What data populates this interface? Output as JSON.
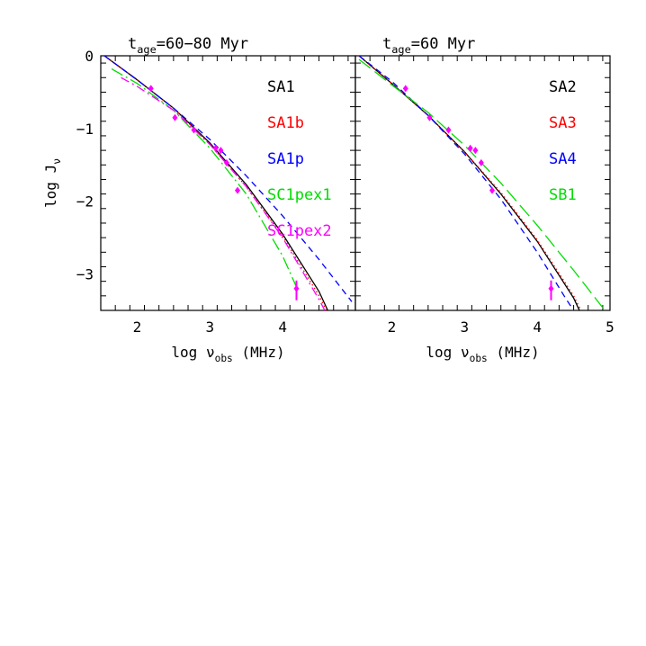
{
  "chart_data": [
    {
      "type": "line",
      "title": "t_age=60-80 Myr",
      "title_main": "t",
      "title_sub": "age",
      "title_rest": "=60−80 Myr",
      "xlabel_prefix": "log ",
      "xlabel_symbol": "ν",
      "xlabel_sub": "obs",
      "xlabel_unit": " (MHz)",
      "ylabel_prefix": "log J",
      "ylabel_sub": "ν",
      "xlim": [
        1.5,
        5.0
      ],
      "ylim": [
        -3.5,
        0.0
      ],
      "xticks": [
        2,
        3,
        4
      ],
      "xtick_labels": [
        "2",
        "3",
        "4"
      ],
      "yticks": [
        0,
        -1,
        -2,
        -3
      ],
      "ytick_labels": [
        "0",
        "−1",
        "−2",
        "−3"
      ],
      "legend_position": "top-right",
      "series": [
        {
          "name": "SA1",
          "color": "#000000",
          "dash": "solid",
          "x": [
            1.55,
            2.0,
            2.5,
            3.0,
            3.5,
            4.0,
            4.5,
            4.62
          ],
          "y": [
            0.0,
            -0.33,
            -0.72,
            -1.2,
            -1.77,
            -2.45,
            -3.24,
            -3.5
          ]
        },
        {
          "name": "SA1b",
          "color": "#ff0000",
          "dash": "dotted",
          "x": [
            1.55,
            2.0,
            2.5,
            3.0,
            3.5,
            4.0,
            4.5,
            4.6
          ],
          "y": [
            0.0,
            -0.33,
            -0.72,
            -1.22,
            -1.8,
            -2.48,
            -3.3,
            -3.5
          ]
        },
        {
          "name": "SA1p",
          "color": "#0000ff",
          "dash": "short-dash",
          "x": [
            1.55,
            2.0,
            2.5,
            3.0,
            3.5,
            4.0,
            4.5,
            4.95
          ],
          "y": [
            0.0,
            -0.33,
            -0.72,
            -1.15,
            -1.65,
            -2.2,
            -2.8,
            -3.38
          ]
        },
        {
          "name": "SC1pex1",
          "color": "#00dd00",
          "dash": "long-dash-dot",
          "x": [
            1.65,
            2.0,
            2.5,
            3.0,
            3.5,
            4.0,
            4.2
          ],
          "y": [
            -0.18,
            -0.38,
            -0.75,
            -1.27,
            -1.9,
            -2.75,
            -3.2
          ]
        },
        {
          "name": "SC1pex2",
          "color": "#ff00ff",
          "dash": "dash-dot",
          "x": [
            1.78,
            2.0,
            2.5,
            3.0,
            3.5,
            4.0,
            4.5,
            4.58
          ],
          "y": [
            -0.3,
            -0.42,
            -0.75,
            -1.22,
            -1.8,
            -2.5,
            -3.35,
            -3.5
          ]
        }
      ],
      "observations": {
        "color": "#ff00ff",
        "x": [
          2.19,
          2.52,
          2.78,
          3.08,
          3.15,
          3.23,
          3.38
        ],
        "y": [
          -0.45,
          -0.85,
          -1.02,
          -1.27,
          -1.3,
          -1.47,
          -1.85
        ],
        "upper_limit": {
          "x": 4.19,
          "y": -3.2
        }
      }
    },
    {
      "type": "line",
      "title": "t_age=60 Myr",
      "title_main": "t",
      "title_sub": "age",
      "title_rest": "=60 Myr",
      "xlabel_prefix": "log ",
      "xlabel_symbol": "ν",
      "xlabel_sub": "obs",
      "xlabel_unit": " (MHz)",
      "xlim": [
        1.5,
        5.0
      ],
      "ylim": [
        -3.5,
        0.0
      ],
      "xticks": [
        2,
        3,
        4,
        5
      ],
      "xtick_labels": [
        "2",
        "3",
        "4",
        "5"
      ],
      "legend_position": "top-right",
      "series": [
        {
          "name": "SA2",
          "color": "#000000",
          "dash": "solid",
          "x": [
            1.55,
            2.0,
            2.5,
            3.0,
            3.5,
            4.0,
            4.5,
            4.58
          ],
          "y": [
            0.0,
            -0.38,
            -0.82,
            -1.32,
            -1.9,
            -2.55,
            -3.33,
            -3.5
          ]
        },
        {
          "name": "SA3",
          "color": "#ff0000",
          "dash": "dotted",
          "x": [
            1.55,
            2.0,
            2.5,
            3.0,
            3.5,
            4.0,
            4.5,
            4.6
          ],
          "y": [
            0.0,
            -0.38,
            -0.82,
            -1.32,
            -1.88,
            -2.53,
            -3.3,
            -3.5
          ]
        },
        {
          "name": "SA4",
          "color": "#0000ff",
          "dash": "short-dash",
          "x": [
            1.55,
            2.0,
            2.5,
            3.0,
            3.5,
            4.0,
            4.4,
            4.5
          ],
          "y": [
            0.0,
            -0.35,
            -0.82,
            -1.35,
            -1.97,
            -2.7,
            -3.35,
            -3.5
          ]
        },
        {
          "name": "SB1",
          "color": "#00dd00",
          "dash": "long-dash",
          "x": [
            1.55,
            2.0,
            2.5,
            3.0,
            3.5,
            4.0,
            4.5,
            4.93
          ],
          "y": [
            -0.05,
            -0.4,
            -0.78,
            -1.23,
            -1.75,
            -2.33,
            -2.95,
            -3.5
          ]
        }
      ],
      "observations": {
        "color": "#ff00ff",
        "x": [
          2.19,
          2.52,
          2.78,
          3.08,
          3.15,
          3.23,
          3.38
        ],
        "y": [
          -0.45,
          -0.85,
          -1.02,
          -1.27,
          -1.3,
          -1.47,
          -1.85
        ],
        "upper_limit": {
          "x": 4.19,
          "y": -3.2
        }
      }
    }
  ]
}
